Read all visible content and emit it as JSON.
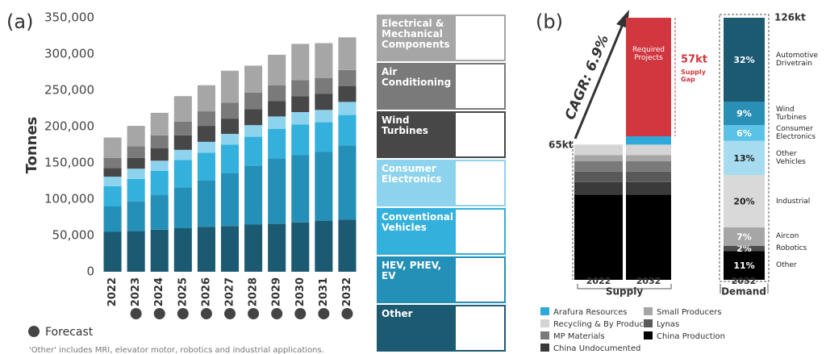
{
  "chart_data": [
    {
      "type": "bar",
      "stacked": true,
      "panel_label": "(a)",
      "ylabel": "Tonnes",
      "categories": [
        "2022",
        "2023",
        "2024",
        "2025",
        "2026",
        "2027",
        "2028",
        "2029",
        "2030",
        "2031",
        "2032"
      ],
      "forecast": [
        false,
        true,
        true,
        true,
        true,
        true,
        true,
        true,
        true,
        true,
        true
      ],
      "forecast_label": "Forecast",
      "series": [
        {
          "name": "Other",
          "color": "#1c5a72",
          "values": [
            55000,
            56000,
            58000,
            60000,
            62000,
            63000,
            65000,
            66000,
            68000,
            70000,
            72000
          ]
        },
        {
          "name": "HEV, PHEV, EV",
          "color": "#2590b7",
          "values": [
            35000,
            41000,
            48000,
            56000,
            64000,
            73000,
            81000,
            90000,
            93000,
            95000,
            102000
          ]
        },
        {
          "name": "Conventional Vehicles",
          "color": "#33b0dc",
          "values": [
            28000,
            31000,
            33000,
            38000,
            38000,
            39000,
            40000,
            41000,
            42000,
            41000,
            42000
          ]
        },
        {
          "name": "Consumer Electronics",
          "color": "#8ed3ee",
          "values": [
            13000,
            14000,
            14000,
            14000,
            15000,
            15000,
            16000,
            17000,
            17000,
            17000,
            18000
          ]
        },
        {
          "name": "Wind Turbines",
          "color": "#474747",
          "values": [
            12000,
            15000,
            17000,
            20000,
            22000,
            21000,
            22000,
            21000,
            22000,
            22000,
            22000
          ]
        },
        {
          "name": "Air Conditioning",
          "color": "#7a7a7a",
          "values": [
            14000,
            16000,
            18000,
            19000,
            20000,
            22000,
            23000,
            22000,
            22000,
            22000,
            22000
          ]
        },
        {
          "name": "Electrical & Mechanical Components",
          "color": "#a6a6a6",
          "values": [
            28000,
            28000,
            31000,
            35000,
            36000,
            44000,
            37000,
            42000,
            50000,
            48000,
            45000
          ]
        }
      ],
      "ylim": [
        0,
        350000
      ],
      "yticks": [
        0,
        {
          "value": 50000,
          "label": "50,000"
        },
        {
          "value": 100000,
          "label": "100,000"
        },
        {
          "value": 150000,
          "label": "150,000"
        },
        {
          "value": 200000,
          "label": "200,000"
        },
        {
          "value": 250000,
          "label": "250,000"
        },
        {
          "value": 300000,
          "label": "300,000"
        },
        {
          "value": 350000,
          "label": "350,000"
        }
      ],
      "note": "'Other' includes MRI, elevator motor, robotics and industrial applications."
    },
    {
      "type": "bar",
      "stacked": true,
      "panel_label": "(b)",
      "xlabel": "Supply",
      "categories": [
        "2022",
        "2032"
      ],
      "series": [
        {
          "name": "China Production",
          "color": "#000000",
          "values": [
            41,
            41
          ]
        },
        {
          "name": "China Undocumented",
          "color": "#3a3a3a",
          "values": [
            6,
            6
          ]
        },
        {
          "name": "Lynas",
          "color": "#595959",
          "values": [
            5,
            5
          ]
        },
        {
          "name": "MP Materials",
          "color": "#7a7a7a",
          "values": [
            5,
            5
          ]
        },
        {
          "name": "Small Producers",
          "color": "#a6a6a6",
          "values": [
            3,
            3
          ]
        },
        {
          "name": "Recycling & By Products",
          "color": "#d4d4d4",
          "values": [
            5,
            5
          ]
        },
        {
          "name": "Arafura Resources",
          "color": "#2fa9d9",
          "values": [
            null,
            4
          ]
        }
      ],
      "gap": {
        "label": "Required Projects",
        "value": 57,
        "value_label": "57kt",
        "note": "Supply Gap",
        "color": "#d1373f"
      },
      "total_label": "65kt",
      "growth_label": "CAGR: 6.9%",
      "ylim": [
        0,
        126
      ]
    },
    {
      "type": "bar",
      "stacked": true,
      "xlabel": "Demand",
      "categories": [
        "2032"
      ],
      "total_label": "126kt",
      "series": [
        {
          "name": "Other",
          "color": "#000000",
          "values": [
            11
          ],
          "value_labels": [
            "11%"
          ]
        },
        {
          "name": "Robotics",
          "color": "#4d4d4d",
          "values": [
            2
          ],
          "value_labels": [
            "2%"
          ]
        },
        {
          "name": "Aircon",
          "color": "#a6a6a6",
          "values": [
            7
          ],
          "value_labels": [
            "7%"
          ]
        },
        {
          "name": "Industrial",
          "color": "#d9d9d9",
          "values": [
            20
          ],
          "value_labels": [
            "20%"
          ]
        },
        {
          "name": "Other Vehicles",
          "color": "#a7dcf0",
          "values": [
            13
          ],
          "value_labels": [
            "13%"
          ]
        },
        {
          "name": "Consumer Electronics",
          "color": "#5bc2e7",
          "values": [
            6
          ],
          "value_labels": [
            "6%"
          ]
        },
        {
          "name": "Wind Turbines",
          "color": "#2a8fb5",
          "values": [
            9
          ],
          "value_labels": [
            "9%"
          ]
        },
        {
          "name": "Automotive Drivetrain",
          "color": "#1c5a72",
          "values": [
            32
          ],
          "value_labels": [
            "32%"
          ]
        }
      ],
      "ylim": [
        0,
        100
      ]
    }
  ]
}
